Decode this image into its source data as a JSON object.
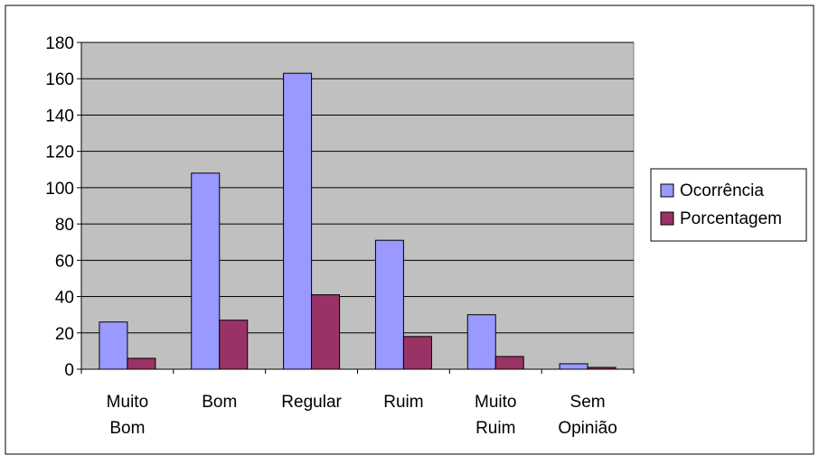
{
  "chart_data": {
    "type": "bar",
    "categories": [
      [
        "Muito",
        "Bom"
      ],
      [
        "Bom"
      ],
      [
        "Regular"
      ],
      [
        "Ruim"
      ],
      [
        "Muito",
        "Ruim"
      ],
      [
        "Sem",
        "Opinião"
      ]
    ],
    "series": [
      {
        "name": "Ocorrência",
        "color": "#9999ff",
        "values": [
          26,
          108,
          163,
          71,
          30,
          3
        ]
      },
      {
        "name": "Porcentagem",
        "color": "#993366",
        "values": [
          6,
          27,
          41,
          18,
          7,
          1
        ]
      }
    ],
    "ylim": [
      0,
      180
    ],
    "yticks": [
      0,
      20,
      40,
      60,
      80,
      100,
      120,
      140,
      160,
      180
    ],
    "grid": true,
    "legend": "right",
    "plot_bg": "#c0c0c0"
  }
}
